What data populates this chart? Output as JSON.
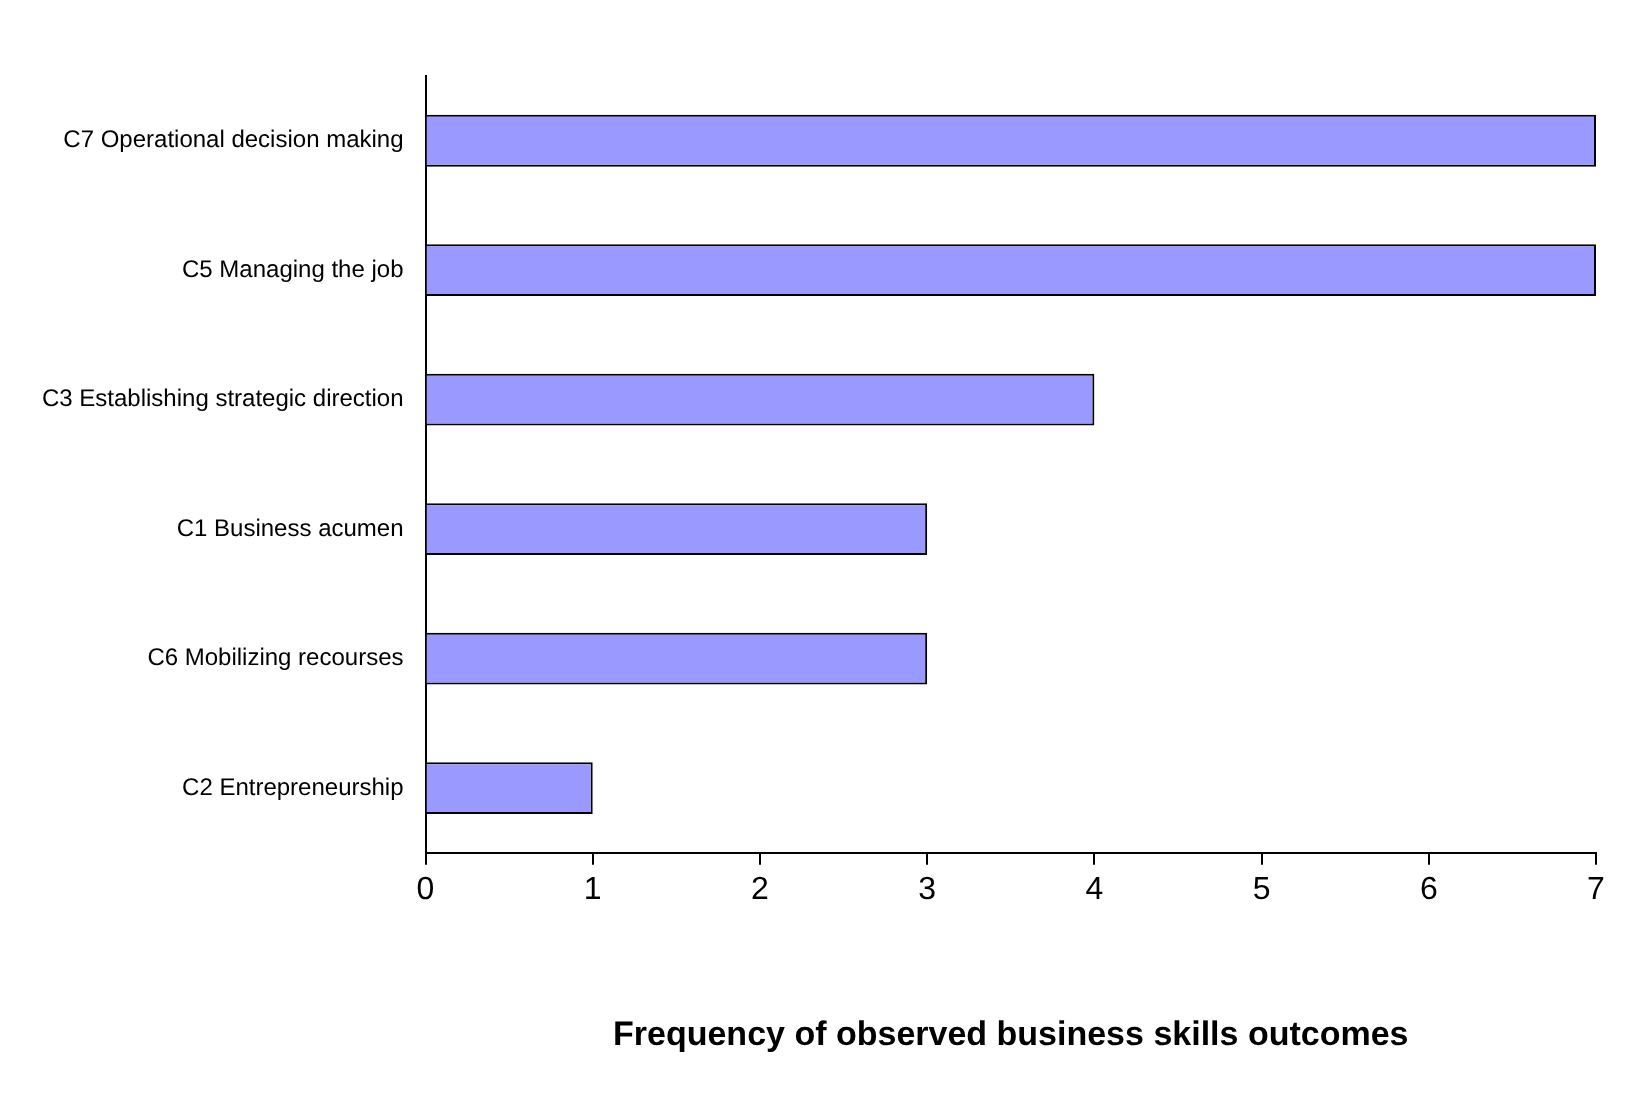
{
  "chart_data": {
    "type": "bar",
    "orientation": "horizontal",
    "xlabel": "Frequency of observed business skills outcomes",
    "categories": [
      "C7 Operational decision making",
      "C5 Managing the job",
      "C3 Establishing strategic direction",
      "C1 Business acumen",
      "C6 Mobilizing recourses",
      "C2 Entrepreneurship"
    ],
    "values": [
      7,
      7,
      4,
      3,
      3,
      1
    ],
    "color": "#9999ff",
    "xlim": [
      0,
      7
    ],
    "xticks": [
      0,
      1,
      2,
      3,
      4,
      5,
      6,
      7
    ],
    "grid": false,
    "legend": false
  }
}
